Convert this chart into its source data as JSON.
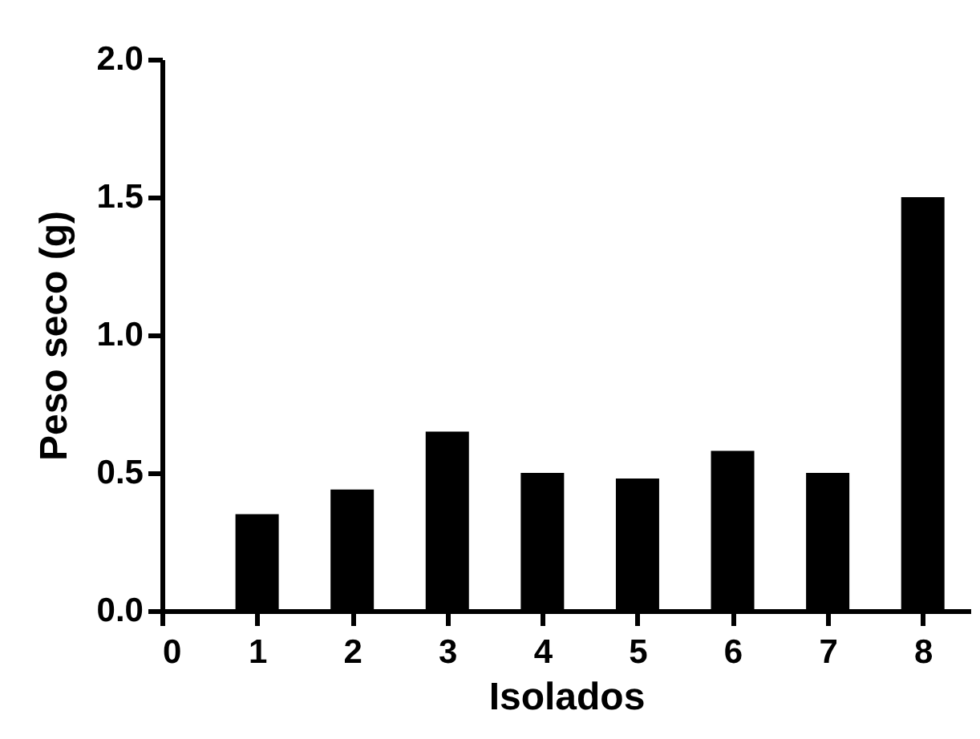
{
  "chart_data": {
    "type": "bar",
    "xlabel": "Isolados",
    "ylabel": "Peso seco (g)",
    "x": [
      1,
      2,
      3,
      4,
      5,
      6,
      7,
      8
    ],
    "values": [
      0.35,
      0.44,
      0.65,
      0.5,
      0.48,
      0.58,
      0.5,
      1.5
    ],
    "color": "#000000",
    "xlim": [
      0,
      8.5
    ],
    "xticks": [
      0,
      1,
      2,
      3,
      4,
      5,
      6,
      7,
      8
    ],
    "ylim": [
      0,
      2.0
    ],
    "yticks": [
      {
        "value": 0,
        "label": "0.0"
      },
      0.5,
      {
        "value": 1,
        "label": "1.0"
      },
      1.5,
      {
        "value": 2,
        "label": "2.0"
      }
    ],
    "grid": false
  }
}
